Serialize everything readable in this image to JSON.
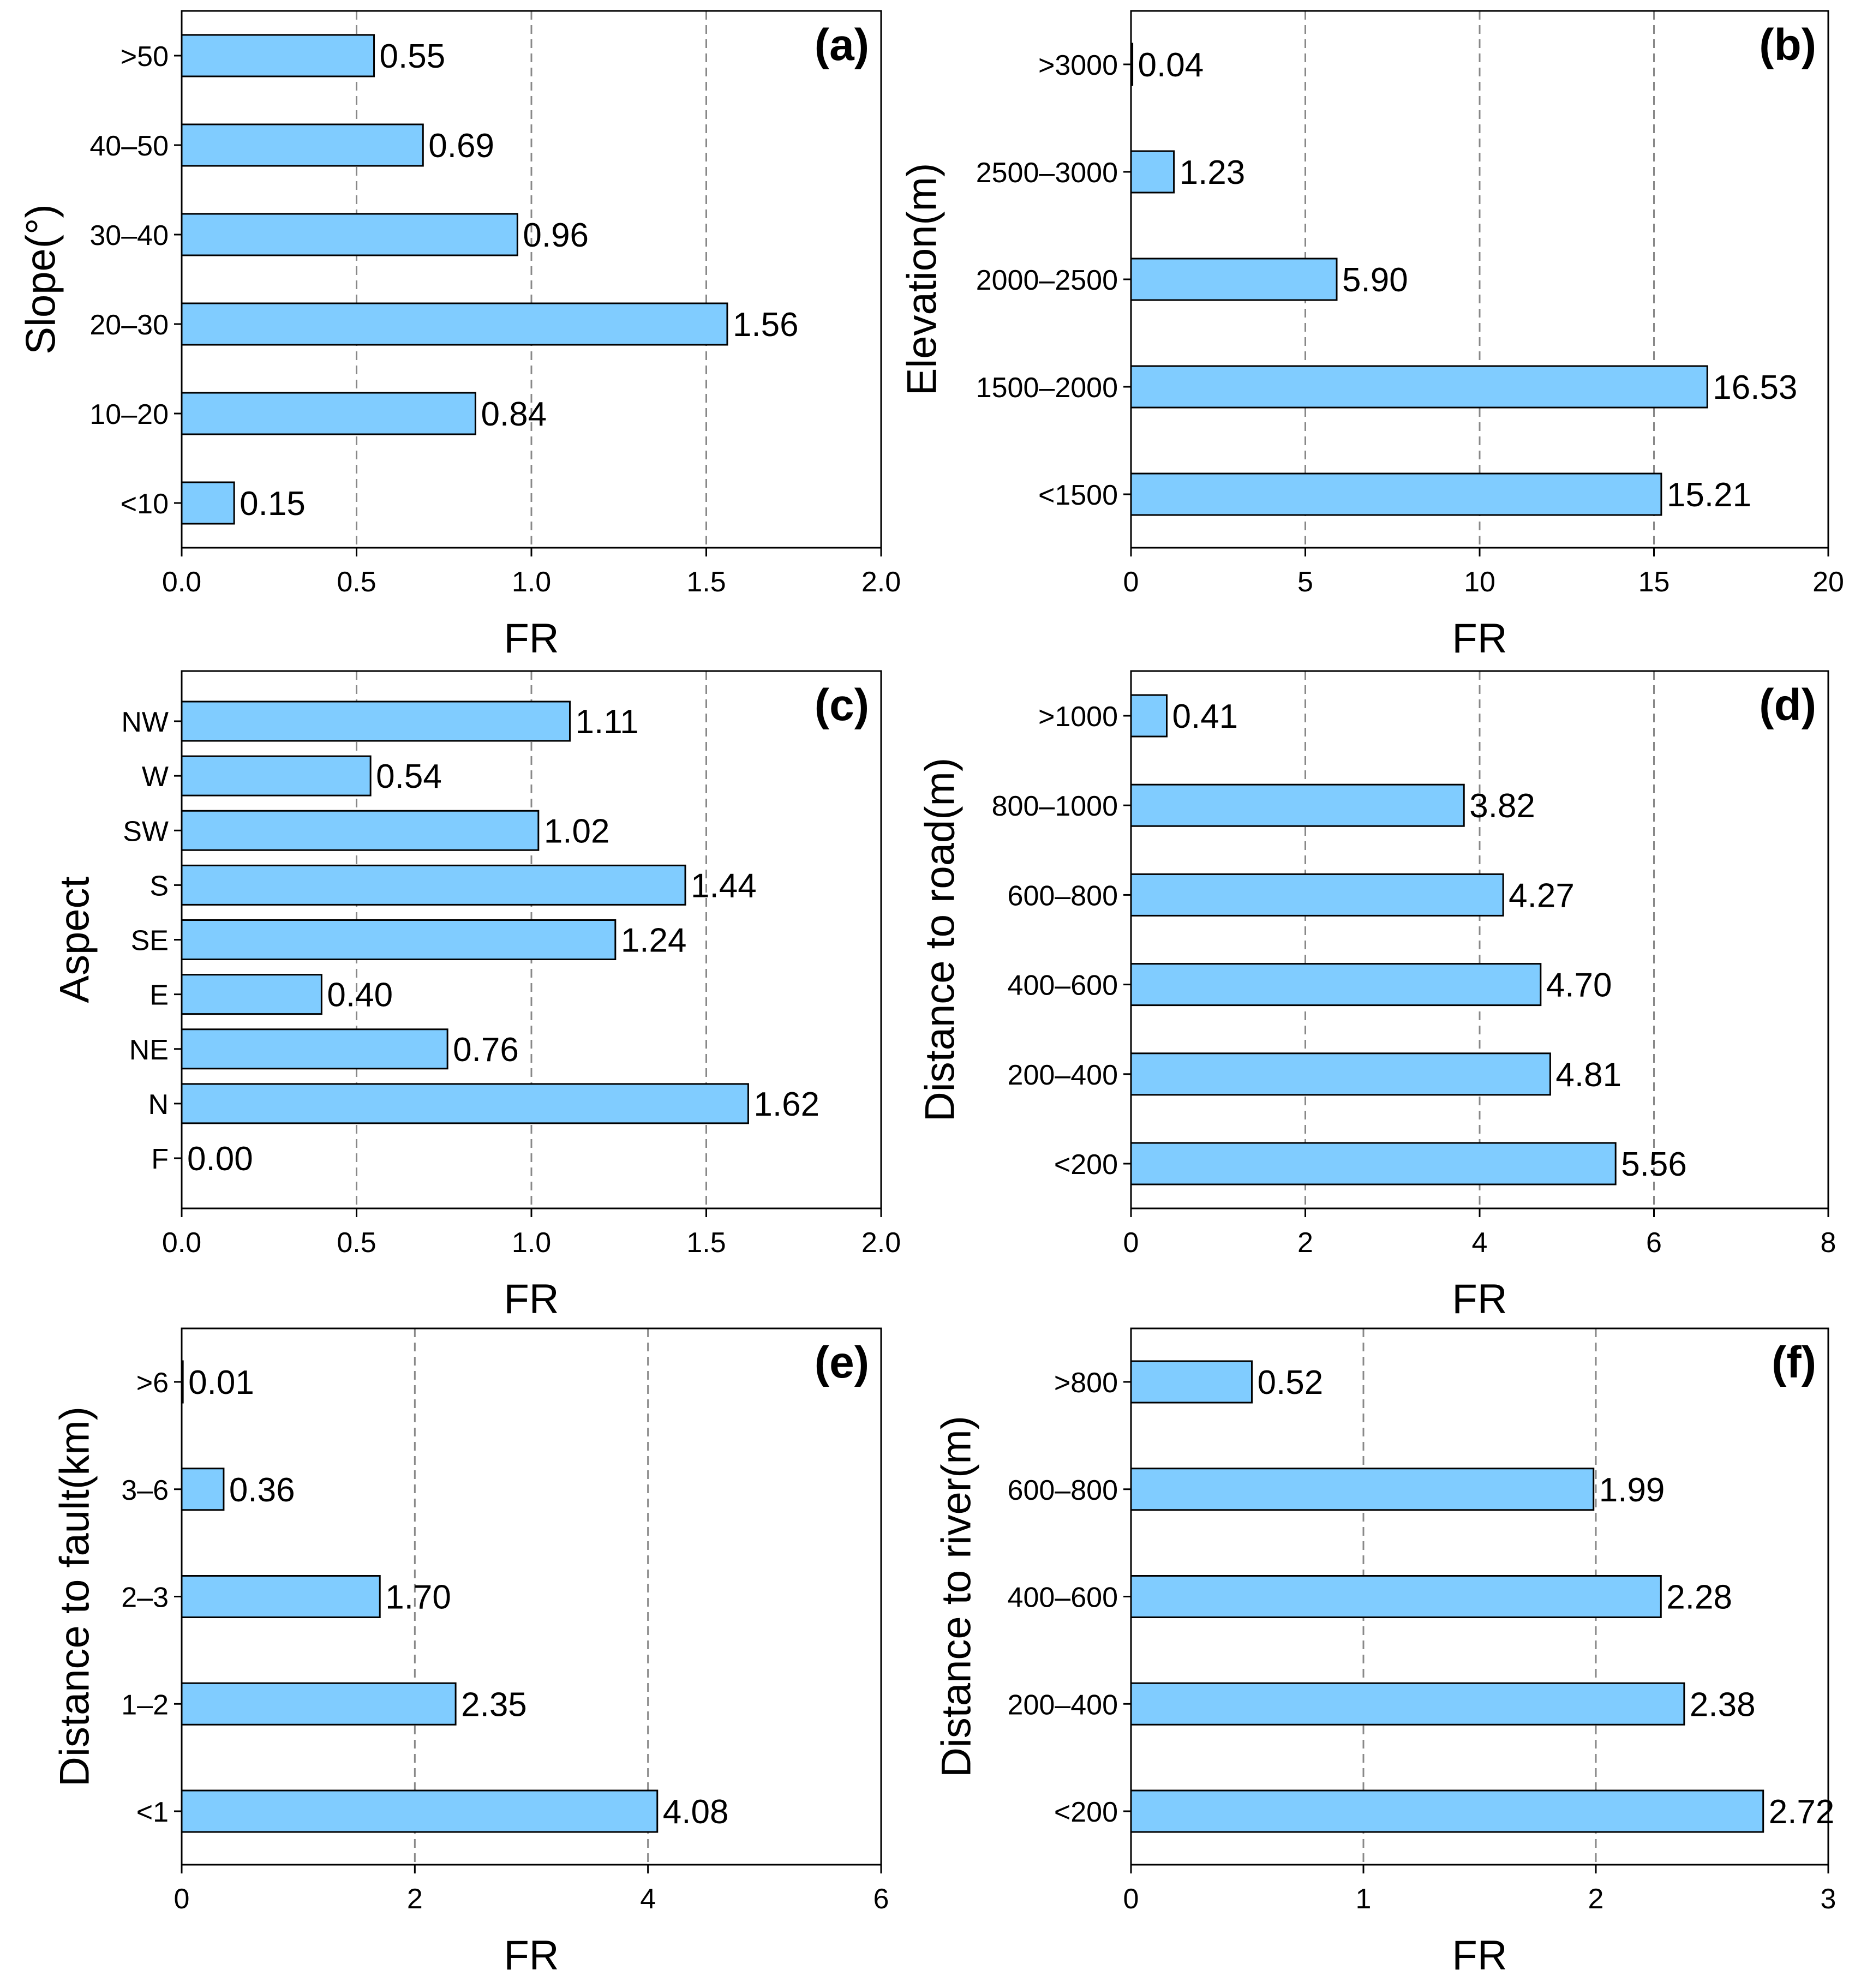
{
  "figure": {
    "bar_color": "#80CCFF",
    "grid_color": "#888888"
  },
  "chart_data": [
    {
      "type": "bar",
      "orientation": "horizontal",
      "panel_label": "(a)",
      "title": "",
      "xlabel": "FR",
      "ylabel": "Slope(°)",
      "xlim": [
        0,
        2.0
      ],
      "xticks": [
        "0.0",
        "0.5",
        "1.0",
        "1.5",
        "2.0"
      ],
      "grid": "vertical dashed at 0.5, 1.0, 1.5",
      "categories": [
        "<10",
        "10–20",
        "20–30",
        "30–40",
        "40–50",
        ">50"
      ],
      "values": [
        0.15,
        0.84,
        1.56,
        0.96,
        0.69,
        0.55
      ],
      "labels": [
        "0.15",
        "0.84",
        "1.56",
        "0.96",
        "0.69",
        "0.55"
      ]
    },
    {
      "type": "bar",
      "orientation": "horizontal",
      "panel_label": "(b)",
      "title": "",
      "xlabel": "FR",
      "ylabel": "Elevation(m)",
      "xlim": [
        0,
        20
      ],
      "xticks": [
        "0",
        "5",
        "10",
        "15",
        "20"
      ],
      "grid": "vertical dashed at 5, 10, 15",
      "categories": [
        "<1500",
        "1500–2000",
        "2000–2500",
        "2500–3000",
        ">3000"
      ],
      "values": [
        15.21,
        16.53,
        5.9,
        1.23,
        0.04
      ],
      "labels": [
        "15.21",
        "16.53",
        "5.90",
        "1.23",
        "0.04"
      ]
    },
    {
      "type": "bar",
      "orientation": "horizontal",
      "panel_label": "(c)",
      "title": "",
      "xlabel": "FR",
      "ylabel": "Aspect",
      "xlim": [
        0,
        2.0
      ],
      "xticks": [
        "0.0",
        "0.5",
        "1.0",
        "1.5",
        "2.0"
      ],
      "grid": "vertical dashed at 0.5, 1.0, 1.5",
      "categories": [
        "F",
        "N",
        "NE",
        "E",
        "SE",
        "S",
        "SW",
        "W",
        "NW"
      ],
      "values": [
        0.0,
        1.62,
        0.76,
        0.4,
        1.24,
        1.44,
        1.02,
        0.54,
        1.11
      ],
      "labels": [
        "0.00",
        "1.62",
        "0.76",
        "0.40",
        "1.24",
        "1.44",
        "1.02",
        "0.54",
        "1.11"
      ]
    },
    {
      "type": "bar",
      "orientation": "horizontal",
      "panel_label": "(d)",
      "title": "",
      "xlabel": "FR",
      "ylabel": "Distance to road(m)",
      "xlim": [
        0,
        8
      ],
      "xticks": [
        "0",
        "2",
        "4",
        "6",
        "8"
      ],
      "grid": "vertical dashed at 2, 4, 6",
      "categories": [
        "<200",
        "200–400",
        "400–600",
        "600–800",
        "800–1000",
        ">1000"
      ],
      "values": [
        5.56,
        4.81,
        4.7,
        4.27,
        3.82,
        0.41
      ],
      "labels": [
        "5.56",
        "4.81",
        "4.70",
        "4.27",
        "3.82",
        "0.41"
      ]
    },
    {
      "type": "bar",
      "orientation": "horizontal",
      "panel_label": "(e)",
      "title": "",
      "xlabel": "FR",
      "ylabel": "Distance to fault(km)",
      "xlim": [
        0,
        6
      ],
      "xticks": [
        "0",
        "2",
        "4",
        "6"
      ],
      "grid": "vertical dashed at 2, 4",
      "categories": [
        "<1",
        "1–2",
        "2–3",
        "3–6",
        ">6"
      ],
      "values": [
        4.08,
        2.35,
        1.7,
        0.36,
        0.01
      ],
      "labels": [
        "4.08",
        "2.35",
        "1.70",
        "0.36",
        "0.01"
      ]
    },
    {
      "type": "bar",
      "orientation": "horizontal",
      "panel_label": "(f)",
      "title": "",
      "xlabel": "FR",
      "ylabel": "Distance to river(m)",
      "xlim": [
        0,
        3
      ],
      "xticks": [
        "0",
        "1",
        "2",
        "3"
      ],
      "grid": "vertical dashed at 1, 2",
      "categories": [
        "<200",
        "200–400",
        "400–600",
        "600–800",
        ">800"
      ],
      "values": [
        2.72,
        2.38,
        2.28,
        1.99,
        0.52
      ],
      "labels": [
        "2.72",
        "2.38",
        "2.28",
        "1.99",
        "0.52"
      ]
    }
  ]
}
